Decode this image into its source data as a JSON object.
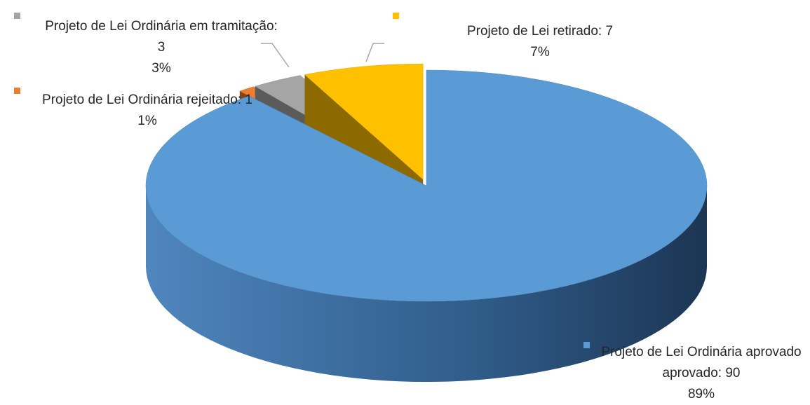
{
  "chart_data": {
    "type": "pie3d",
    "labels": [
      "Projeto de Lei Ordinária aprovado aprovado: 90",
      "Projeto de Lei Ordinária rejeitado: 1",
      "Projeto de Lei Ordinária em tramitação: 3",
      "Projeto de Lei retirado: 7"
    ],
    "values": [
      90,
      1,
      3,
      7
    ],
    "percentages": [
      89,
      1,
      3,
      7
    ],
    "percentage_labels": [
      "89%",
      "1%",
      "3%",
      "7%"
    ],
    "colors": [
      "#5b9bd5",
      "#ed7d31",
      "#a5a5a5",
      "#ffc000"
    ],
    "exploded": [
      false,
      true,
      true,
      true
    ]
  }
}
